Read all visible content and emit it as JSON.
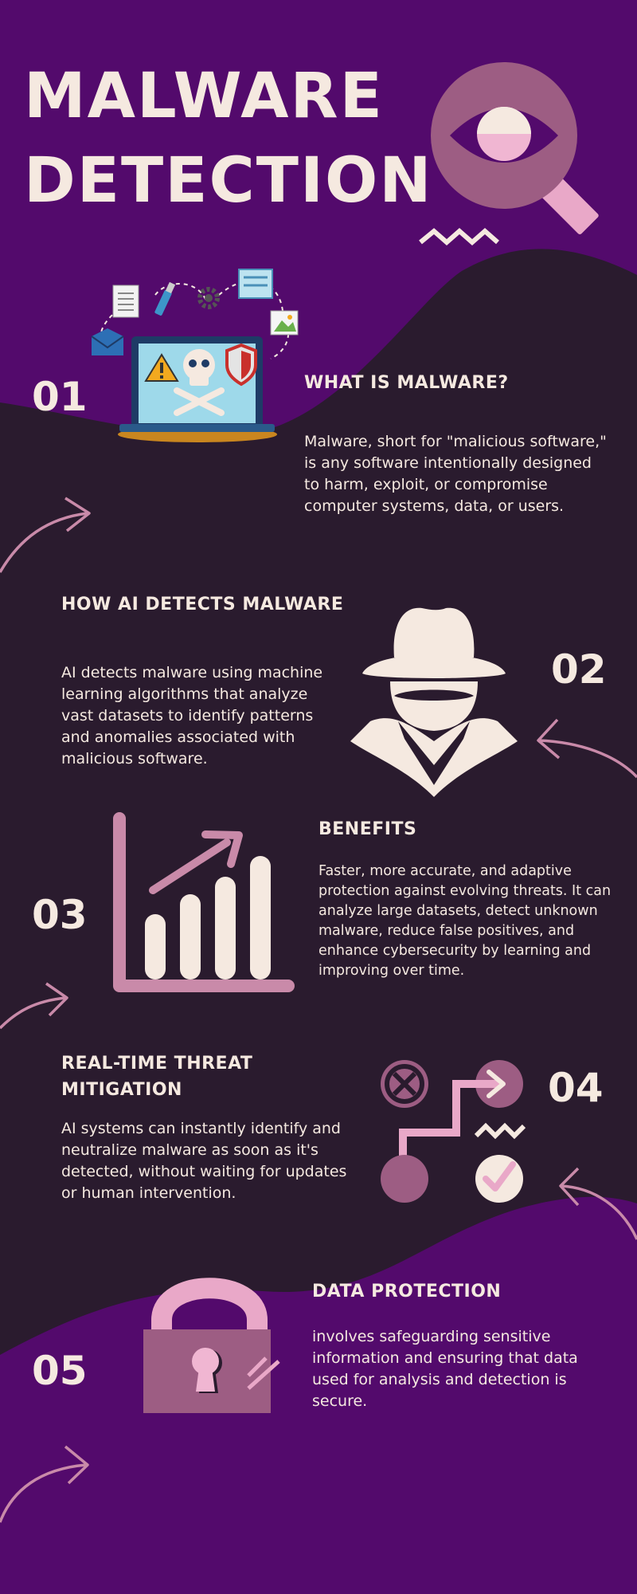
{
  "colors": {
    "purple": "#530a6c",
    "dark": "#2a1b2e",
    "cream": "#f5e9e0",
    "pink": "#c98aa9",
    "light_pink": "#e9a8c8",
    "mauve": "#a05c85"
  },
  "title": {
    "line1": "MALWARE",
    "line2": "DETECTION"
  },
  "sections": [
    {
      "number": "01",
      "heading": "WHAT IS MALWARE?",
      "text": "Malware, short for \"malicious software,\" is any software intentionally designed to harm, exploit, or compromise computer systems, data, or users.",
      "icon": "laptop-malware-icon"
    },
    {
      "number": "02",
      "heading": "HOW AI DETECTS MALWARE",
      "text": "AI detects malware using machine learning algorithms that analyze vast datasets to identify patterns and anomalies associated with malicious software.",
      "icon": "spy-icon"
    },
    {
      "number": "03",
      "heading": "BENEFITS",
      "text": "Faster, more accurate, and adaptive protection against evolving threats. It can analyze large datasets, detect unknown malware, reduce false positives, and enhance cybersecurity by learning and improving over time.",
      "icon": "growth-chart-icon"
    },
    {
      "number": "04",
      "heading": "REAL-TIME THREAT MITIGATION",
      "text": "AI systems can instantly identify and neutralize malware as soon as it's detected, without waiting for updates or human intervention.",
      "icon": "process-flow-icon"
    },
    {
      "number": "05",
      "heading": "DATA PROTECTION",
      "text": "involves safeguarding sensitive information and ensuring that data used for analysis and detection is secure.",
      "icon": "padlock-icon"
    }
  ]
}
